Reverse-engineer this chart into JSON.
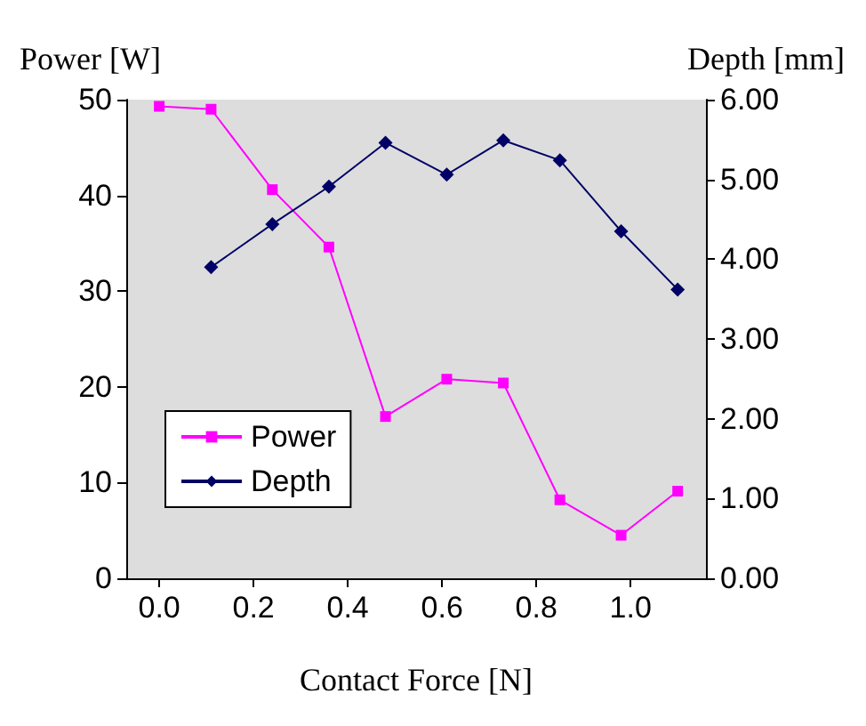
{
  "chart_data": {
    "type": "line",
    "xlabel": "Contact Force [N]",
    "ylabel": "Power [W]",
    "y2label": "Depth [mm]",
    "xlim": [
      -0.07,
      1.16
    ],
    "xticks": [
      {
        "value": 0,
        "label": "0.0"
      },
      {
        "value": 0.2,
        "label": "0.2"
      },
      {
        "value": 0.4,
        "label": "0.4"
      },
      {
        "value": 0.6,
        "label": "0.6"
      },
      {
        "value": 0.8,
        "label": "0.8"
      },
      {
        "value": 1.0,
        "label": "1.0"
      }
    ],
    "ylim": [
      0,
      50
    ],
    "yticks": [
      0,
      10,
      20,
      30,
      40,
      50
    ],
    "y2lim": [
      0,
      6
    ],
    "y2ticks": [
      {
        "value": 0,
        "label": "0.00"
      },
      {
        "value": 1,
        "label": "1.00"
      },
      {
        "value": 2,
        "label": "2.00"
      },
      {
        "value": 3,
        "label": "3.00"
      },
      {
        "value": 4,
        "label": "4.00"
      },
      {
        "value": 5,
        "label": "5.00"
      },
      {
        "value": 6,
        "label": "6.00"
      }
    ],
    "x": [
      0,
      0.11,
      0.24,
      0.36,
      0.48,
      0.61,
      0.73,
      0.85,
      0.98,
      1.1
    ],
    "series": [
      {
        "name": "Power",
        "color": "#ff00ff",
        "marker": "square",
        "values": [
          49.3,
          49.0,
          40.6,
          34.6,
          16.9,
          20.8,
          20.4,
          8.2,
          4.5,
          9.1
        ]
      },
      {
        "name": "Depth",
        "color": "#000066",
        "marker": "diamond",
        "axis": "y2",
        "values": [
          null,
          3.9,
          4.44,
          4.91,
          5.46,
          5.06,
          5.49,
          5.24,
          4.35,
          3.62
        ]
      }
    ],
    "grid": false,
    "legend": "bottom left",
    "line_style": "solid"
  }
}
